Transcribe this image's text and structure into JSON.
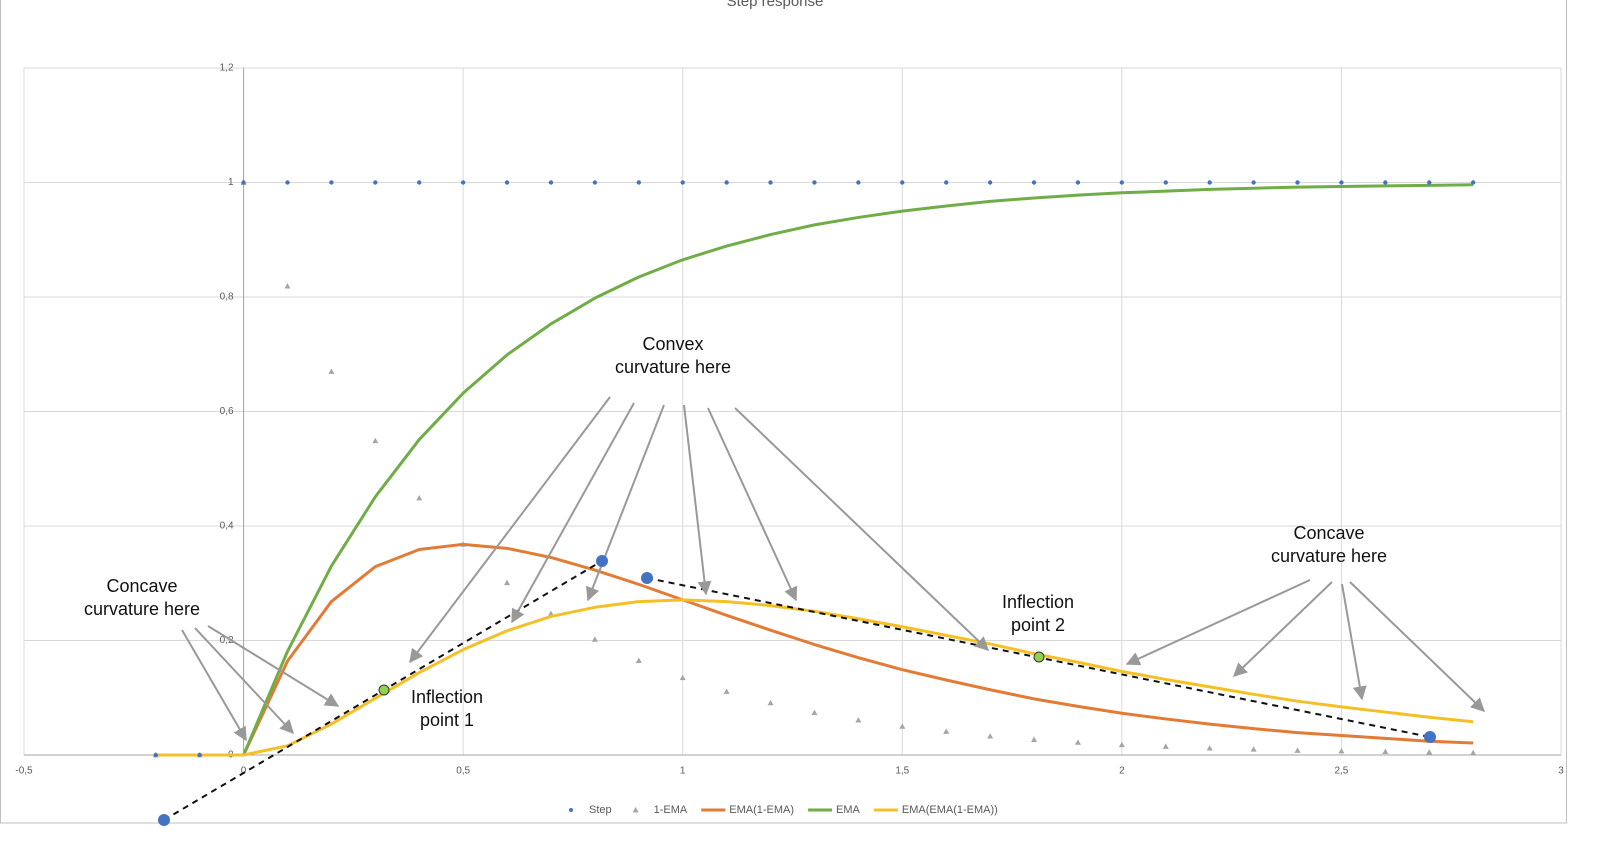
{
  "chart_data": {
    "type": "scatter",
    "title": "Step response",
    "x": [
      -0.2,
      -0.1,
      0,
      0.1,
      0.2,
      0.3,
      0.4,
      0.5,
      0.6,
      0.7,
      0.8,
      0.9,
      1.0,
      1.1,
      1.2,
      1.3,
      1.4,
      1.5,
      1.6,
      1.7,
      1.8,
      1.9,
      2.0,
      2.1,
      2.2,
      2.3,
      2.4,
      2.5,
      2.6,
      2.7,
      2.8
    ],
    "series": [
      {
        "name": "Step",
        "color": "#4472c4",
        "mode": "dots",
        "values": [
          0,
          0,
          1,
          1,
          1,
          1,
          1,
          1,
          1,
          1,
          1,
          1,
          1,
          1,
          1,
          1,
          1,
          1,
          1,
          1,
          1,
          1,
          1,
          1,
          1,
          1,
          1,
          1,
          1,
          1,
          1
        ]
      },
      {
        "name": "1-EMA",
        "color": "#a5a5a5",
        "mode": "triangles",
        "values": [
          0,
          0,
          1,
          0.819,
          0.67,
          0.549,
          0.449,
          0.368,
          0.301,
          0.247,
          0.202,
          0.165,
          0.135,
          0.111,
          0.091,
          0.074,
          0.061,
          0.05,
          0.041,
          0.033,
          0.027,
          0.022,
          0.018,
          0.015,
          0.012,
          0.01,
          0.008,
          0.007,
          0.006,
          0.005,
          0.004
        ]
      },
      {
        "name": "EMA(1-EMA)",
        "color": "#e27b35",
        "mode": "line",
        "values": [
          0,
          0,
          0,
          0.164,
          0.268,
          0.329,
          0.359,
          0.368,
          0.361,
          0.345,
          0.323,
          0.298,
          0.271,
          0.244,
          0.218,
          0.193,
          0.17,
          0.149,
          0.131,
          0.114,
          0.098,
          0.085,
          0.073,
          0.063,
          0.054,
          0.046,
          0.039,
          0.034,
          0.029,
          0.024,
          0.021
        ]
      },
      {
        "name": "EMA",
        "color": "#70ad47",
        "mode": "line",
        "values": [
          0,
          0,
          0,
          0.181,
          0.33,
          0.451,
          0.551,
          0.632,
          0.699,
          0.753,
          0.798,
          0.835,
          0.865,
          0.889,
          0.909,
          0.926,
          0.939,
          0.95,
          0.959,
          0.967,
          0.973,
          0.978,
          0.982,
          0.985,
          0.988,
          0.99,
          0.992,
          0.993,
          0.994,
          0.995,
          0.996
        ]
      },
      {
        "name": "EMA(EMA(1-EMA))",
        "color": "#f5c026",
        "mode": "line",
        "values": [
          0,
          0,
          0,
          0.016,
          0.054,
          0.099,
          0.144,
          0.184,
          0.217,
          0.242,
          0.258,
          0.268,
          0.271,
          0.268,
          0.261,
          0.251,
          0.238,
          0.224,
          0.209,
          0.194,
          0.177,
          0.162,
          0.146,
          0.132,
          0.119,
          0.106,
          0.094,
          0.084,
          0.075,
          0.066,
          0.058
        ]
      }
    ],
    "xlim": [
      -0.5,
      3
    ],
    "xticks": [
      {
        "value": -0.5,
        "label": "-0,5"
      },
      0,
      {
        "value": 0.5,
        "label": "0,5"
      },
      1,
      {
        "value": 1.5,
        "label": "1,5"
      },
      2,
      {
        "value": 2.5,
        "label": "2,5"
      },
      3
    ],
    "ylim": [
      0,
      1.2
    ],
    "yticks": [
      0,
      {
        "value": 0.2,
        "label": "0,2"
      },
      {
        "value": 0.4,
        "label": "0,4"
      },
      {
        "value": 0.6,
        "label": "0,6"
      },
      {
        "value": 0.8,
        "label": "0,8"
      },
      1,
      {
        "value": 1.2,
        "label": "1,2"
      }
    ],
    "grid": true,
    "legend": "bottom",
    "annotations": [
      "Concave curvature here",
      "Convex curvature here",
      "Concave curvature here",
      "Inflection point 1",
      "Inflection point 2"
    ]
  }
}
